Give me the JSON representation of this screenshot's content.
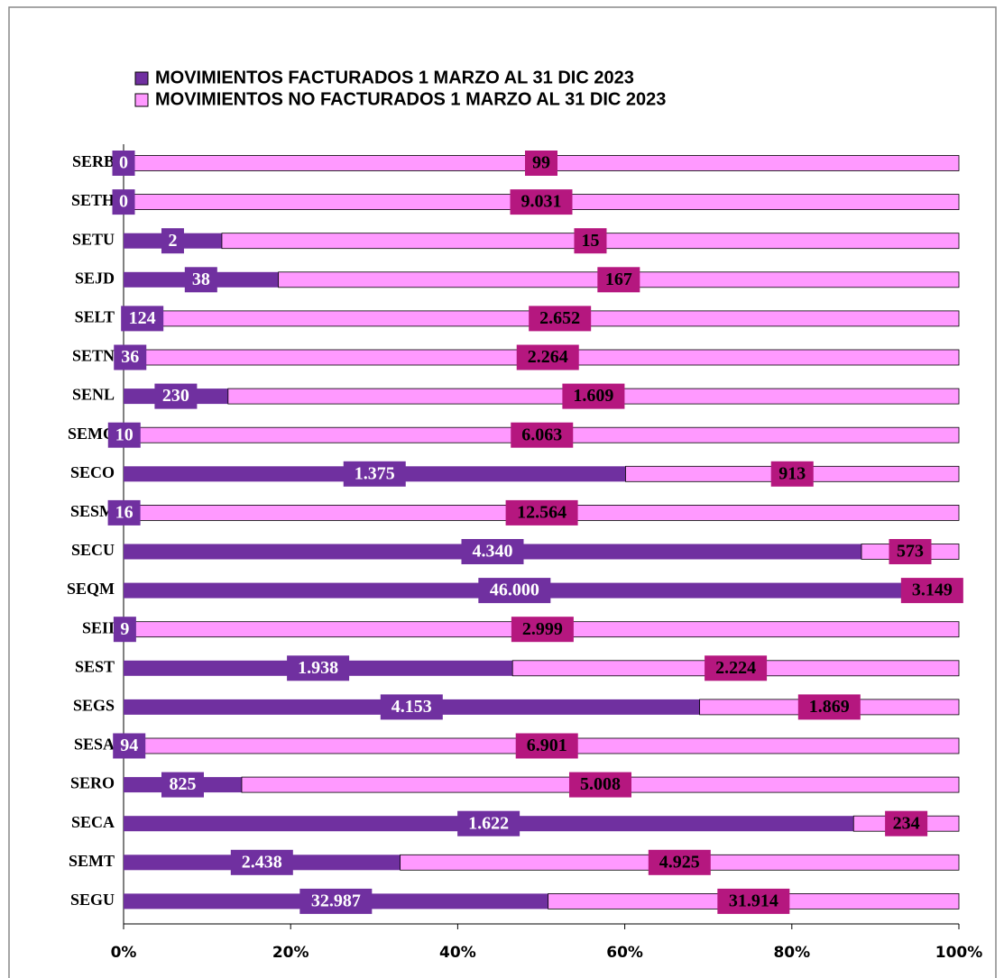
{
  "chart_data": {
    "type": "stacked-bar-100",
    "orientation": "horizontal",
    "categories": [
      "SERB",
      "SETH",
      "SETU",
      "SEJD",
      "SELT",
      "SETN",
      "SENL",
      "SEMC",
      "SECO",
      "SESM",
      "SECU",
      "SEQM",
      "SEII",
      "SEST",
      "SEGS",
      "SESA",
      "SERO",
      "SECA",
      "SEMT",
      "SEGU"
    ],
    "series": [
      {
        "name": "MOVIMIENTOS FACTURADOS 1 MARZO AL 31 DIC 2023",
        "color": "#7030a0",
        "values": [
          0,
          0,
          2,
          38,
          124,
          36,
          230,
          10,
          1375,
          16,
          4340,
          46000,
          9,
          1938,
          4153,
          94,
          825,
          1622,
          2438,
          32987
        ],
        "value_labels": [
          "0",
          "0",
          "2",
          "38",
          "124",
          "36",
          "230",
          "10",
          "1.375",
          "16",
          "4.340",
          "46.000",
          "9",
          "1.938",
          "4.153",
          "94",
          "825",
          "1.622",
          "2.438",
          "32.987"
        ]
      },
      {
        "name": "MOVIMIENTOS  NO FACTURADOS 1 MARZO AL 31 DIC 2023",
        "color": "#ff99ff",
        "values": [
          99,
          9031,
          15,
          167,
          2652,
          2264,
          1609,
          6063,
          913,
          12564,
          573,
          3149,
          2999,
          2224,
          1869,
          6901,
          5008,
          234,
          4925,
          31914
        ],
        "value_labels": [
          "99",
          "9.031",
          "15",
          "167",
          "2.652",
          "2.264",
          "1.609",
          "6.063",
          "913",
          "12.564",
          "573",
          "3.149",
          "2.999",
          "2.224",
          "1.869",
          "6.901",
          "5.008",
          "234",
          "4.925",
          "31.914"
        ]
      }
    ],
    "xlim": [
      0,
      100
    ],
    "xticks": [
      {
        "value": 0,
        "label": "0%"
      },
      {
        "value": 20,
        "label": "20%"
      },
      {
        "value": 40,
        "label": "40%"
      },
      {
        "value": 60,
        "label": "60%"
      },
      {
        "value": 80,
        "label": "80%"
      },
      {
        "value": 100,
        "label": "100%"
      }
    ],
    "legend": "top",
    "grid": false
  }
}
